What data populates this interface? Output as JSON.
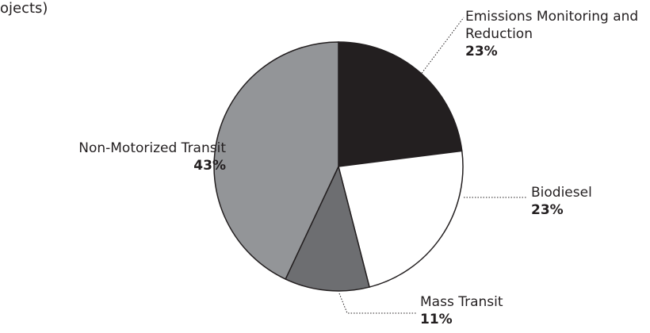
{
  "chart_data": {
    "type": "pie",
    "title": "ojects)",
    "categories": [
      "Emissions Monitoring and Reduction",
      "Biodiesel",
      "Mass Transit",
      "Non-Motorized Transit"
    ],
    "values": [
      23,
      23,
      11,
      43
    ],
    "value_labels": [
      "23%",
      "23%",
      "11%",
      "43%"
    ],
    "colors": [
      "#231f20",
      "#ffffff",
      "#6d6e71",
      "#939598"
    ]
  }
}
